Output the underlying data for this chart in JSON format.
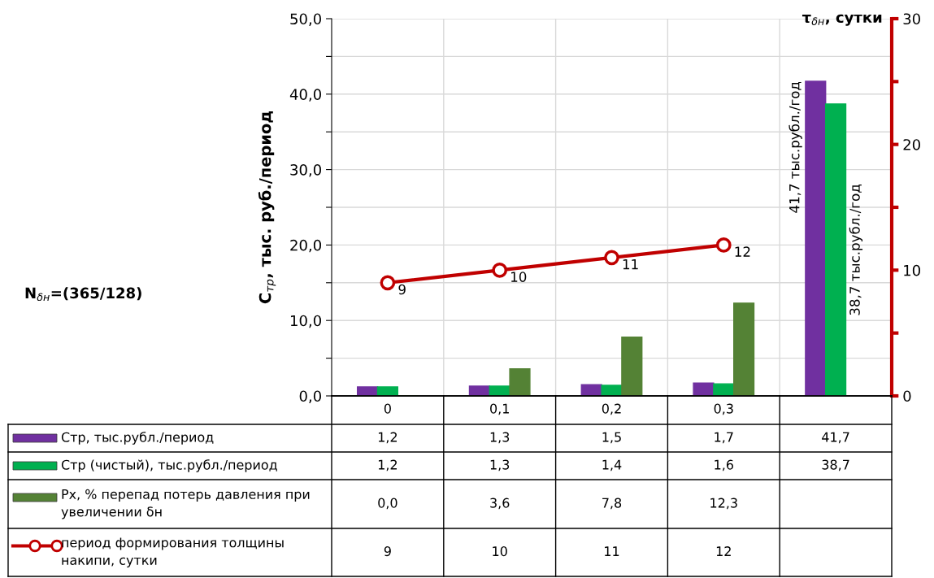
{
  "chart_data": {
    "type": "bar",
    "categories": [
      "0",
      "0,1",
      "0,2",
      "0,3",
      null
    ],
    "series": [
      {
        "name": "Стр, тыс.рубл./период",
        "color": "#7030a0",
        "values": [
          1.2,
          1.3,
          1.5,
          1.7,
          41.7
        ],
        "value_labels": [
          "1,2",
          "1,3",
          "1,5",
          "1,7",
          "41,7"
        ]
      },
      {
        "name": "Стр (чистый), тыс.рубл./период",
        "color": "#00b050",
        "values": [
          1.2,
          1.3,
          1.4,
          1.6,
          38.7
        ],
        "value_labels": [
          "1,2",
          "1,3",
          "1,4",
          "1,6",
          "38,7"
        ]
      },
      {
        "name": "Рх, % перепад потерь давления при увеличении δн",
        "color": "#548235",
        "values": [
          0.0,
          3.6,
          7.8,
          12.3,
          null
        ],
        "value_labels": [
          "0,0",
          "3,6",
          "7,8",
          "12,3",
          null
        ]
      },
      {
        "name": "период формирования толщины накипи, сутки",
        "color": "#c00000",
        "type": "line",
        "axis": "y2",
        "values": [
          9,
          10,
          11,
          12,
          null
        ],
        "value_labels": [
          "9",
          "10",
          "11",
          "12",
          null
        ]
      }
    ],
    "ylabel": "C$_{тр}$, тыс. руб./период",
    "y2label": "τ$_{δн}$, сутки",
    "annotations": [
      "N$_{δн}$=(365/128)",
      "41,7 тыс.рубл./год",
      "38,7 тыс.рубл./год"
    ],
    "ylim": [
      0,
      50
    ],
    "yticks": [
      {
        "value": 0,
        "label": "0,0"
      },
      {
        "value": 5,
        "label": null
      },
      {
        "value": 10,
        "label": "10,0"
      },
      {
        "value": 15,
        "label": null
      },
      {
        "value": 20,
        "label": "20,0"
      },
      {
        "value": 25,
        "label": null
      },
      {
        "value": 30,
        "label": "30,0"
      },
      {
        "value": 35,
        "label": null
      },
      {
        "value": 40,
        "label": "40,0"
      },
      {
        "value": 45,
        "label": null
      },
      {
        "value": 50,
        "label": "50,0"
      }
    ],
    "y2lim": [
      0,
      30
    ],
    "y2ticks": [
      0,
      {
        "value": 5,
        "label": null
      },
      10,
      {
        "value": 15,
        "label": null
      },
      20,
      {
        "value": 25,
        "label": null
      },
      30
    ],
    "grid": true,
    "legend": "bottom",
    "marker": "circle",
    "line_style": "solid"
  }
}
